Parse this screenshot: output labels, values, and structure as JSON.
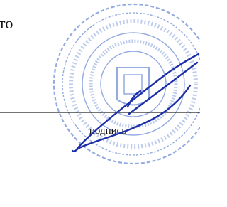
{
  "fragment": "то",
  "signature_caption": "подпись"
}
